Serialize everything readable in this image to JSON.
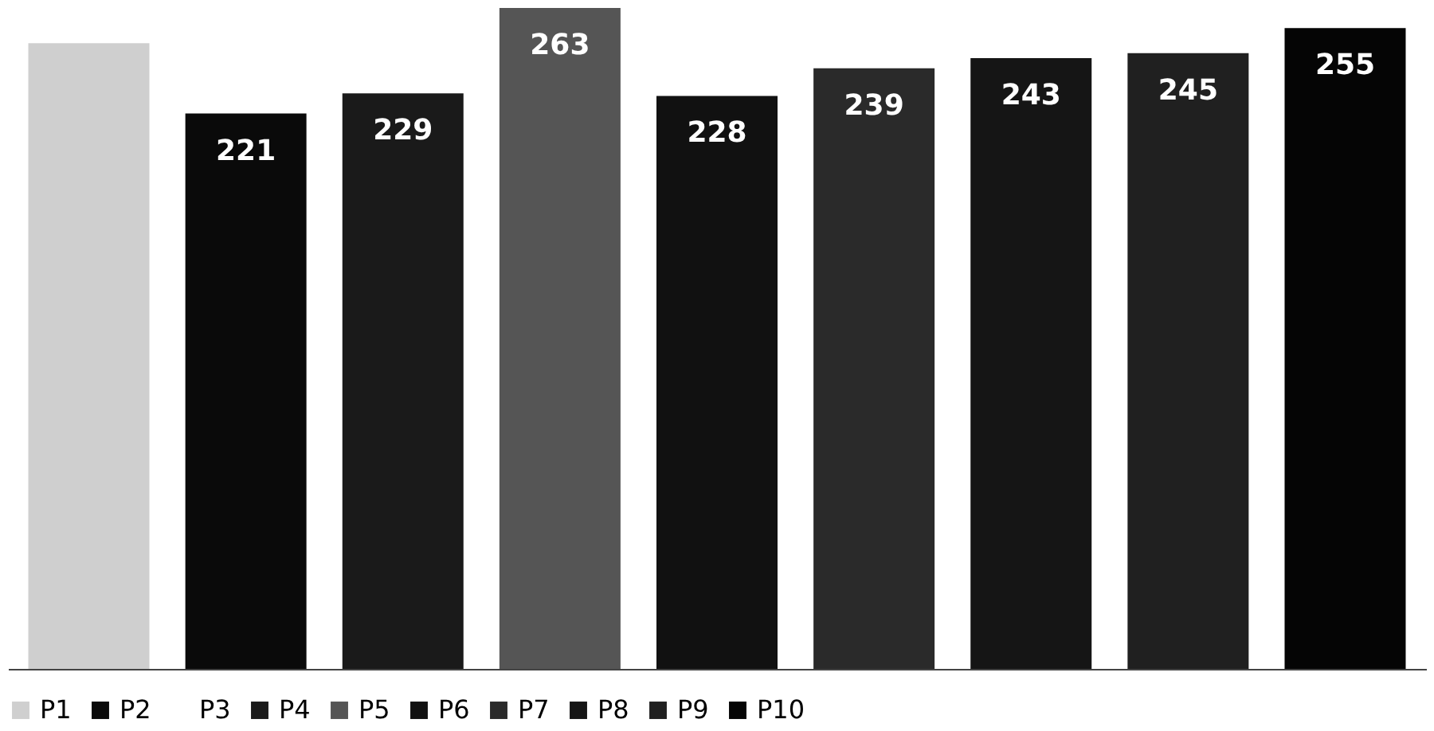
{
  "chart_data": {
    "type": "bar",
    "categories": [
      null
    ],
    "legend": "bottom",
    "grid": false,
    "series": [
      {
        "name": "P1",
        "color": "#cfcfcf",
        "values": [
          249
        ],
        "value_labels": [
          null
        ]
      },
      {
        "name": "P2",
        "color": "#0a0a0a",
        "values": [
          221
        ],
        "value_labels": [
          "221"
        ]
      },
      {
        "name": "P3",
        "values": [
          null
        ],
        "value_labels": [
          null
        ]
      },
      {
        "name": "P4",
        "color": "#1a1a1a",
        "values": [
          229
        ],
        "value_labels": [
          "229"
        ]
      },
      {
        "name": "P5",
        "color": "#555555",
        "values": [
          263
        ],
        "value_labels": [
          "263"
        ]
      },
      {
        "name": "P6",
        "color": "#111111",
        "values": [
          228
        ],
        "value_labels": [
          "228"
        ]
      },
      {
        "name": "P7",
        "color": "#2a2a2a",
        "values": [
          239
        ],
        "value_labels": [
          "239"
        ]
      },
      {
        "name": "P8",
        "color": "#151515",
        "values": [
          243
        ],
        "value_labels": [
          "243"
        ]
      },
      {
        "name": "P9",
        "color": "#202020",
        "values": [
          245
        ],
        "value_labels": [
          "245"
        ]
      },
      {
        "name": "P10",
        "color": "#050505",
        "values": [
          255
        ],
        "value_labels": [
          "255"
        ]
      }
    ]
  }
}
